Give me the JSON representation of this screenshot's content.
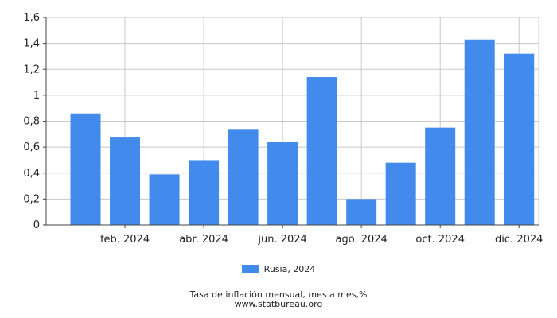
{
  "chart_data": {
    "type": "bar",
    "categories": [
      "ene. 2024",
      "feb. 2024",
      "mar. 2024",
      "abr. 2024",
      "may. 2024",
      "jun. 2024",
      "jul. 2024",
      "ago. 2024",
      "sep. 2024",
      "oct. 2024",
      "nov. 2024",
      "dic. 2024"
    ],
    "x_tick_labels": [
      "feb. 2024",
      "abr. 2024",
      "jun. 2024",
      "ago. 2024",
      "oct. 2024",
      "dic. 2024"
    ],
    "x_tick_indices": [
      1,
      3,
      5,
      7,
      9,
      11
    ],
    "series": [
      {
        "name": "Rusia, 2024",
        "values": [
          0.86,
          0.68,
          0.39,
          0.5,
          0.74,
          0.64,
          1.14,
          0.2,
          0.48,
          0.75,
          1.43,
          1.32
        ]
      }
    ],
    "y_ticks": [
      "0",
      "0,2",
      "0,4",
      "0,6",
      "0,8",
      "1",
      "1,2",
      "1,4",
      "1,6"
    ],
    "ylim": [
      0,
      1.6
    ],
    "grid": true,
    "legend_position": "bottom",
    "colors": {
      "bar": "#428bec",
      "grid": "#c8c8c8",
      "axis": "#444444"
    }
  },
  "legend": {
    "label": "Rusia, 2024"
  },
  "caption": {
    "title": "Tasa de inflación mensual, mes a mes,%",
    "source": "www.statbureau.org"
  }
}
